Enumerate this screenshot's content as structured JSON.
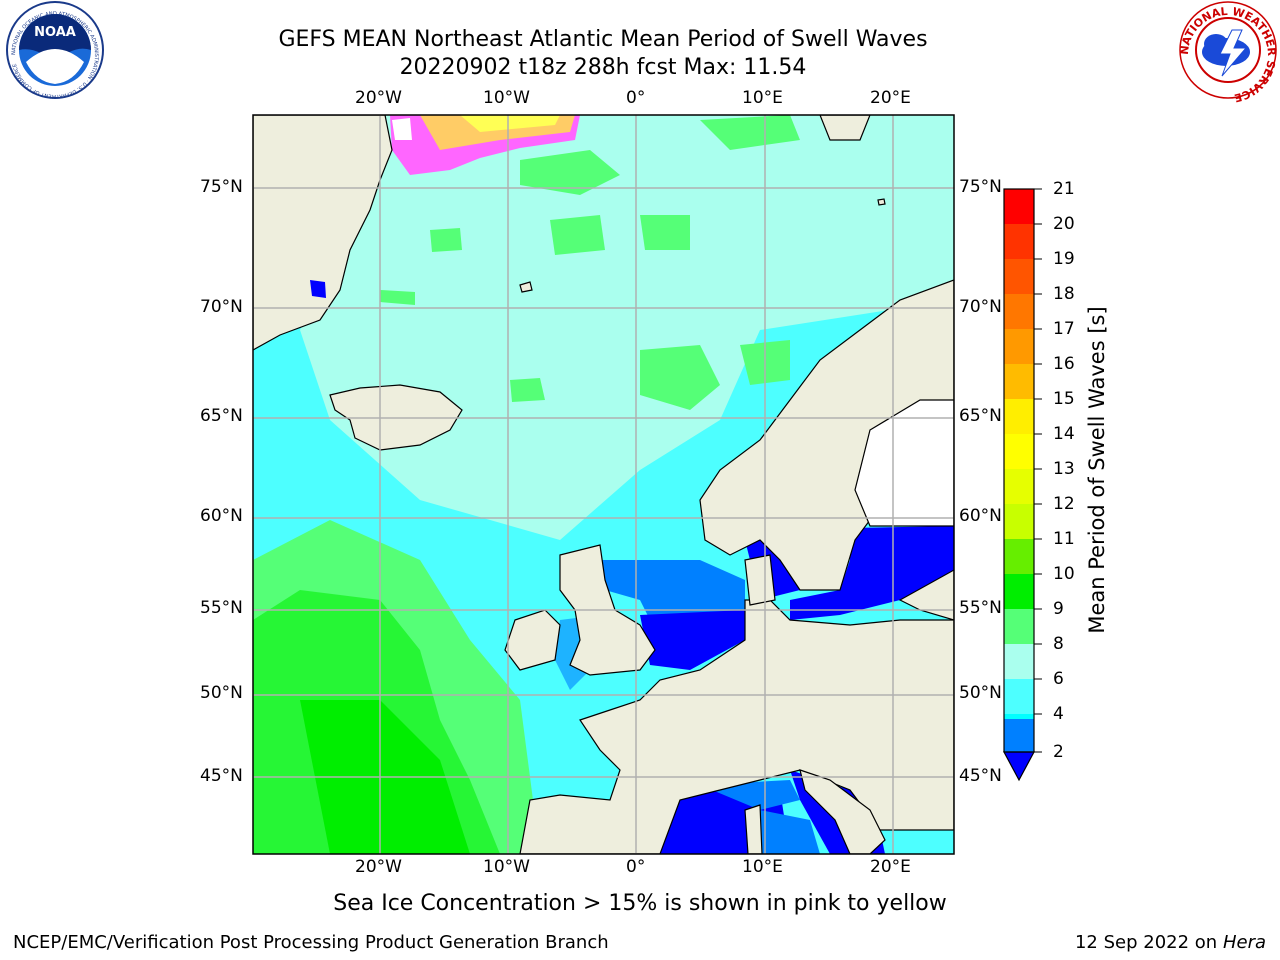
{
  "title": {
    "line1": "GEFS MEAN Northeast Atlantic Mean Period of Swell Waves",
    "line2": "20220902 t18z 288h fcst   Max: 11.54"
  },
  "map": {
    "lon_ticks_top": [
      "20°W",
      "10°W",
      "0°",
      "10°E",
      "20°E"
    ],
    "lon_ticks_bottom": [
      "20°W",
      "10°W",
      "0°",
      "10°E",
      "20°E"
    ],
    "lat_ticks_left": [
      "75°N",
      "70°N",
      "65°N",
      "60°N",
      "55°N",
      "50°N",
      "45°N"
    ],
    "lat_ticks_right": [
      "75°N",
      "70°N",
      "65°N",
      "60°N",
      "55°N",
      "50°N",
      "45°N"
    ],
    "land_color": "#eeeedd",
    "ocean_color": "#4dffff"
  },
  "colorbar": {
    "label": "Mean Period of Swell Waves [s]",
    "ticks": [
      "21",
      "20",
      "19",
      "18",
      "17",
      "16",
      "15",
      "14",
      "13",
      "12",
      "11",
      "10",
      "9",
      "8",
      "6",
      "4",
      "2"
    ],
    "colors": [
      "#ff0000",
      "#ff3300",
      "#ff5500",
      "#ff7700",
      "#ff9900",
      "#ffbb00",
      "#ffee00",
      "#ffff00",
      "#e6ff00",
      "#c8ff00",
      "#66ee00",
      "#00ee00",
      "#55ff77",
      "#aaffee",
      "#4dffff",
      "#00ffff",
      "#0080ff"
    ],
    "under_color": "#0000ff"
  },
  "logos": {
    "noaa_text": "NOAA",
    "noaa_ring_text": "NATIONAL OCEANIC AND ATMOSPHERIC ADMINISTRATION · U.S. DEPARTMENT OF COMMERCE",
    "nws_ring_text": "NATIONAL WEATHER SERVICE"
  },
  "notes": {
    "ice": "Sea Ice Concentration > 15% is shown in pink to yellow"
  },
  "footer": {
    "left": "NCEP/EMC/Verification Post Processing Product Generation Branch",
    "date": "12 Sep 2022 on",
    "machine": "Hera"
  }
}
